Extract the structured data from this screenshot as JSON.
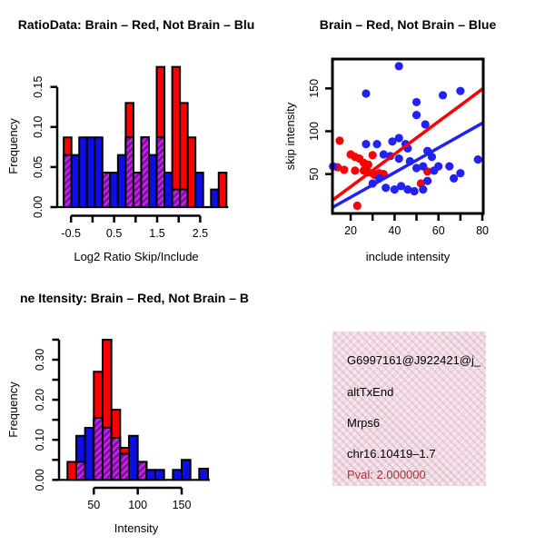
{
  "window": {
    "background": "#ffffff"
  },
  "colors": {
    "hist_red": "#fb0000",
    "hist_blue": "#0d0de8",
    "scatter_red": "#fb0000",
    "scatter_blue": "#2222f5",
    "overlap_purple_base": "#7a0fb8",
    "overlap_purple_stripe": "#ce2ace",
    "axis_black": "#000000",
    "info_box_pink": "#f6d6e9",
    "pval_red": "#a83232"
  },
  "chart_data": [
    {
      "id": "ratio-histogram",
      "type": "bar",
      "title": "RatioData: Brain – Red, Not Brain – Blu",
      "xlabel": "Log2 Ratio Skip/Include",
      "ylabel": "Frequency",
      "x_ticks": [
        -0.5,
        0,
        0.5,
        1,
        1.5,
        2,
        2.5
      ],
      "x_tick_labels": [
        "-0.5",
        "",
        "0.5",
        "",
        "1.5",
        "",
        "2.5"
      ],
      "y_ticks": [
        0,
        0.05,
        0.1,
        0.15
      ],
      "y_tick_labels": [
        "0.00",
        "0.05",
        "0.10",
        "0.15"
      ],
      "ylim": [
        0,
        0.18
      ],
      "bin_start": -0.67,
      "bin_width": 0.18,
      "grid": false,
      "overlap_style": "purple-hatched",
      "series": [
        {
          "name": "Brain (red)",
          "values": [
            0.087,
            0,
            0,
            0,
            0,
            0.043,
            0,
            0,
            0.13,
            0.043,
            0.087,
            0,
            0.175,
            0,
            0.175,
            0.13,
            0.087,
            0,
            0,
            0,
            0.043
          ]
        },
        {
          "name": "Not Brain (blue)",
          "values": [
            0.065,
            0.065,
            0.087,
            0.087,
            0.087,
            0.043,
            0.043,
            0.065,
            0.087,
            0.043,
            0.087,
            0.065,
            0.087,
            0.043,
            0.022,
            0.022,
            0,
            0.043,
            0,
            0.022,
            0
          ]
        }
      ]
    },
    {
      "id": "scatter",
      "type": "scatter",
      "title": "Brain – Red, Not Brain – Blue",
      "xlabel": "include intensity",
      "ylabel": "skip intensity",
      "x_ticks": [
        20,
        30,
        40,
        50,
        60,
        70,
        80
      ],
      "x_tick_labels": [
        "20",
        "",
        "40",
        "",
        "60",
        "",
        "80"
      ],
      "y_ticks": [
        50,
        100,
        150
      ],
      "y_tick_labels": [
        "50",
        "100",
        "150"
      ],
      "xlim": [
        11.7,
        80.4
      ],
      "ylim": [
        4,
        184.3
      ],
      "grid": false,
      "series": [
        {
          "name": "Brain (red)",
          "color_key": "scatter_red",
          "points": [
            [
              15,
              89
            ],
            [
              20,
              73
            ],
            [
              22,
              70
            ],
            [
              24,
              68
            ],
            [
              26,
              63
            ],
            [
              28,
              61
            ],
            [
              30,
              72
            ],
            [
              14,
              58
            ],
            [
              17,
              55
            ],
            [
              22,
              54
            ],
            [
              26,
              54
            ],
            [
              28,
              52
            ],
            [
              30,
              51
            ],
            [
              31,
              49
            ],
            [
              33,
              51
            ],
            [
              35,
              50
            ],
            [
              55,
              53
            ],
            [
              52,
              39
            ],
            [
              23,
              13
            ]
          ]
        },
        {
          "name": "Not Brain (blue)",
          "color_key": "scatter_blue",
          "points": [
            [
              42,
              176
            ],
            [
              27,
              144
            ],
            [
              70,
              147
            ],
            [
              62,
              142
            ],
            [
              50,
              134
            ],
            [
              50,
              119
            ],
            [
              54,
              108
            ],
            [
              27,
              85
            ],
            [
              32,
              85
            ],
            [
              39,
              88
            ],
            [
              42,
              92
            ],
            [
              45,
              85
            ],
            [
              46,
              80
            ],
            [
              35,
              73
            ],
            [
              38,
              71
            ],
            [
              42,
              68
            ],
            [
              47,
              65
            ],
            [
              55,
              77
            ],
            [
              57,
              70
            ],
            [
              12,
              59
            ],
            [
              50,
              57
            ],
            [
              53,
              59
            ],
            [
              60,
              59
            ],
            [
              65,
              59
            ],
            [
              70,
              51
            ],
            [
              67,
              45
            ],
            [
              58,
              54
            ],
            [
              78,
              67
            ],
            [
              30,
              39
            ],
            [
              33,
              45
            ],
            [
              36,
              34
            ],
            [
              40,
              32
            ],
            [
              43,
              36
            ],
            [
              46,
              32
            ],
            [
              49,
              30
            ],
            [
              53,
              32
            ],
            [
              55,
              42
            ]
          ]
        }
      ],
      "fit_lines": [
        {
          "color_key": "scatter_red",
          "from": [
            12,
            20
          ],
          "to": [
            80.4,
            150
          ]
        },
        {
          "color_key": "scatter_blue",
          "from": [
            11.7,
            11
          ],
          "to": [
            80.4,
            110
          ]
        }
      ]
    },
    {
      "id": "intensity-histogram",
      "type": "bar",
      "title": "ne Itensity: Brain – Red, Not Brain – B",
      "xlabel": "Intensity",
      "ylabel": "Frequency",
      "x_ticks": [
        50,
        100,
        150
      ],
      "x_tick_labels": [
        "50",
        "100",
        "150"
      ],
      "y_ticks": [
        0,
        0.05,
        0.1,
        0.15,
        0.2,
        0.25,
        0.3,
        0.35
      ],
      "y_tick_labels": [
        "0.00",
        "",
        "0.10",
        "",
        "0.20",
        "",
        "0.30",
        ""
      ],
      "ylim": [
        0,
        0.35
      ],
      "bin_start": 20,
      "bin_width": 10,
      "grid": false,
      "overlap_style": "purple-hatched",
      "series": [
        {
          "name": "Brain (red)",
          "values": [
            0.045,
            0.045,
            0,
            0.27,
            0.35,
            0.175,
            0.08,
            0,
            0.045,
            0,
            0,
            0,
            0,
            0,
            0,
            0
          ]
        },
        {
          "name": "Not Brain (blue)",
          "values": [
            0,
            0.11,
            0.13,
            0.155,
            0.13,
            0.105,
            0.065,
            0.11,
            0.045,
            0.025,
            0.025,
            0,
            0.025,
            0.05,
            0,
            0.028
          ]
        }
      ]
    }
  ],
  "info_box": {
    "lines": [
      "G6997161@J922421@j_",
      "altTxEnd",
      "Mrps6",
      "chr16.10419–1.7"
    ],
    "pval": "Pval: 2.000000"
  }
}
